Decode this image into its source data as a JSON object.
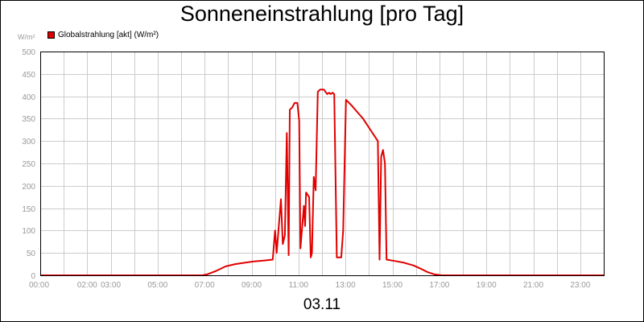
{
  "chart_data": {
    "type": "line",
    "title": "Sonneneinstrahlung [pro Tag]",
    "ylabel": "W/m²",
    "xlabel": "03.11",
    "ylim": [
      0,
      500
    ],
    "xlim": [
      0,
      24
    ],
    "y_ticks": [
      "0",
      "50",
      "100",
      "150",
      "200",
      "250",
      "300",
      "350",
      "400",
      "450",
      "500"
    ],
    "x_ticks": [
      {
        "label": "00:00",
        "value": 0
      },
      {
        "label": "02:00",
        "value": 2
      },
      {
        "label": "03:00",
        "value": 3
      },
      {
        "label": "05:00",
        "value": 5
      },
      {
        "label": "07:00",
        "value": 7
      },
      {
        "label": "09:00",
        "value": 9
      },
      {
        "label": "11:00",
        "value": 11
      },
      {
        "label": "13:00",
        "value": 13
      },
      {
        "label": "15:00",
        "value": 15
      },
      {
        "label": "17:00",
        "value": 17
      },
      {
        "label": "19:00",
        "value": 19
      },
      {
        "label": "21:00",
        "value": 21
      },
      {
        "label": "23:00",
        "value": 23
      }
    ],
    "grid": true,
    "legend": "top-left",
    "series": [
      {
        "name": "Globalstrahlung [akt] (W/m²)",
        "color": "#e00000",
        "points": [
          [
            0,
            0
          ],
          [
            6.9,
            0
          ],
          [
            7.1,
            2
          ],
          [
            7.5,
            10
          ],
          [
            7.9,
            20
          ],
          [
            8.3,
            25
          ],
          [
            8.7,
            28
          ],
          [
            9.1,
            31
          ],
          [
            9.5,
            33
          ],
          [
            9.9,
            35
          ],
          [
            10.0,
            100
          ],
          [
            10.07,
            50
          ],
          [
            10.25,
            170
          ],
          [
            10.33,
            70
          ],
          [
            10.42,
            90
          ],
          [
            10.5,
            318
          ],
          [
            10.58,
            45
          ],
          [
            10.63,
            370
          ],
          [
            10.73,
            375
          ],
          [
            10.83,
            385
          ],
          [
            10.95,
            385
          ],
          [
            11.03,
            345
          ],
          [
            11.08,
            60
          ],
          [
            11.23,
            155
          ],
          [
            11.28,
            110
          ],
          [
            11.32,
            185
          ],
          [
            11.45,
            175
          ],
          [
            11.52,
            40
          ],
          [
            11.57,
            50
          ],
          [
            11.65,
            220
          ],
          [
            11.73,
            190
          ],
          [
            11.82,
            410
          ],
          [
            11.92,
            415
          ],
          [
            12.08,
            415
          ],
          [
            12.22,
            405
          ],
          [
            12.3,
            408
          ],
          [
            12.37,
            405
          ],
          [
            12.45,
            408
          ],
          [
            12.52,
            405
          ],
          [
            12.63,
            40
          ],
          [
            12.82,
            40
          ],
          [
            12.9,
            100
          ],
          [
            13.02,
            392
          ],
          [
            13.25,
            380
          ],
          [
            13.5,
            365
          ],
          [
            13.75,
            350
          ],
          [
            14.0,
            330
          ],
          [
            14.25,
            310
          ],
          [
            14.38,
            300
          ],
          [
            14.45,
            35
          ],
          [
            14.52,
            265
          ],
          [
            14.6,
            280
          ],
          [
            14.68,
            250
          ],
          [
            14.75,
            35
          ],
          [
            15.1,
            32
          ],
          [
            15.5,
            28
          ],
          [
            15.9,
            22
          ],
          [
            16.2,
            15
          ],
          [
            16.5,
            7
          ],
          [
            16.8,
            2
          ],
          [
            17.1,
            0
          ],
          [
            24,
            0
          ]
        ]
      }
    ]
  }
}
